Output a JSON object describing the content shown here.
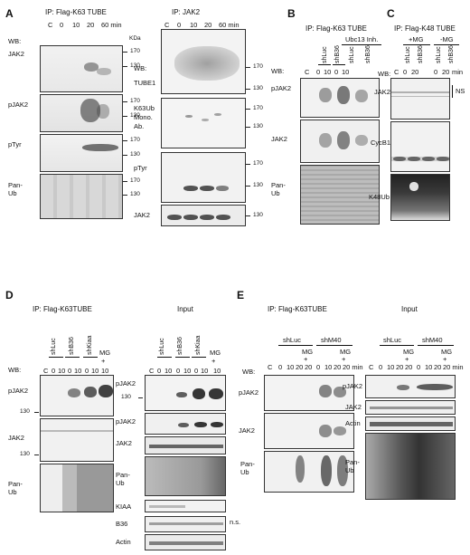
{
  "panels": {
    "A": {
      "letter": "A",
      "left": {
        "title": "IP: Flag-K63 TUBE",
        "lanes": [
          "C",
          "0",
          "10",
          "20",
          "60 min"
        ],
        "wb": "WB:",
        "unit": "KDa",
        "blots": [
          {
            "label": "JAK2",
            "mw": [
              "170",
              "130"
            ]
          },
          {
            "label": "pJAK2",
            "mw": [
              "170",
              "130"
            ]
          },
          {
            "label": "pTyr",
            "mw": [
              "170",
              "130"
            ]
          },
          {
            "label": "Pan-Ub",
            "mw": [
              "170",
              "130"
            ]
          }
        ]
      },
      "right": {
        "title": "IP: JAK2",
        "lanes": [
          "C",
          "0",
          "10",
          "20",
          "60 min"
        ],
        "wb": "WB:",
        "blots": [
          {
            "label": "TUBE1",
            "mw": [
              "170",
              "130"
            ]
          },
          {
            "label": "K63Ub Mono. Ab.",
            "label_lines": [
              "K63Ub",
              "Mono.",
              "Ab."
            ],
            "mw": [
              "170",
              "130"
            ]
          },
          {
            "label": "pTyr",
            "mw": [
              "170",
              "130"
            ]
          },
          {
            "label": "JAK2",
            "mw": [
              "130"
            ]
          }
        ]
      }
    },
    "B": {
      "letter": "B",
      "title": "IP: Flag-K63 TUBE",
      "group": "Ubc13 Inh.",
      "conditions": [
        "shLuc",
        "shB36",
        "shLuc",
        "shB36"
      ],
      "lanes": [
        "C",
        "0",
        "10",
        "0",
        "10"
      ],
      "wb": "WB:",
      "blots": [
        {
          "label": "pJAK2"
        },
        {
          "label": "JAK2"
        },
        {
          "label": "Pan-Ub"
        }
      ]
    },
    "C": {
      "letter": "C",
      "title": "IP: Flag-K48 TUBE",
      "groups": [
        "+MG",
        "-MG"
      ],
      "conditions": [
        "shLuc",
        "shB36",
        "shLuc",
        "shB36"
      ],
      "lanes": [
        "C",
        "0",
        "20",
        "0",
        "20",
        "min"
      ],
      "wb": "WB:",
      "ns": "NS",
      "blots": [
        {
          "label": "JAK2"
        },
        {
          "label": "CycB1"
        },
        {
          "label": "K48Ub"
        }
      ]
    },
    "D": {
      "letter": "D",
      "left": {
        "title": "IP: Flag-K63TUBE",
        "conditions": [
          "shLuc",
          "shB36",
          "shKiaa"
        ],
        "mg": "MG",
        "plus": "+",
        "lanes": [
          "C",
          "0",
          "10",
          "0",
          "10",
          "0",
          "10",
          "10"
        ],
        "wb": "WB:",
        "blots": [
          {
            "label": "pJAK2",
            "mw": [
              "130"
            ]
          },
          {
            "label": "JAK2",
            "mw": [
              "130"
            ]
          },
          {
            "label": "Pan-Ub"
          }
        ]
      },
      "right": {
        "title": "Input",
        "conditions": [
          "shLuc",
          "shB36",
          "shKiaa"
        ],
        "mg": "MG",
        "plus": "+",
        "lanes": [
          "C",
          "0",
          "10",
          "0",
          "10",
          "0",
          "10",
          "10"
        ],
        "ns": "n.s.",
        "blots": [
          {
            "label": "pJAK2",
            "mw": [
              "130"
            ]
          },
          {
            "label": "pJAK2"
          },
          {
            "label": "JAK2"
          },
          {
            "label": "Pan-Ub"
          },
          {
            "label": "KIAA"
          },
          {
            "label": "B36"
          },
          {
            "label": "Actin"
          }
        ]
      }
    },
    "E": {
      "letter": "E",
      "left": {
        "title": "IP: Flag-K63TUBE",
        "conditions": [
          "shLuc",
          "shM40"
        ],
        "mg": "MG",
        "plus": "+",
        "lanes": [
          "C",
          "0",
          "10",
          "20",
          "20",
          "0",
          "10",
          "20",
          "20 min"
        ],
        "wb": "WB:",
        "blots": [
          {
            "label": "pJAK2"
          },
          {
            "label": "JAK2"
          },
          {
            "label": "Pan-Ub"
          }
        ]
      },
      "right": {
        "title": "Input",
        "conditions": [
          "shLuc",
          "shM40"
        ],
        "mg": "MG",
        "plus": "+",
        "lanes": [
          "C",
          "0",
          "10",
          "20",
          "20",
          "0",
          "10",
          "20",
          "20 min"
        ],
        "blots": [
          {
            "label": "pJAK2"
          },
          {
            "label": "JAK2"
          },
          {
            "label": "Actin"
          },
          {
            "label": "Pan-Ub"
          }
        ]
      }
    }
  }
}
